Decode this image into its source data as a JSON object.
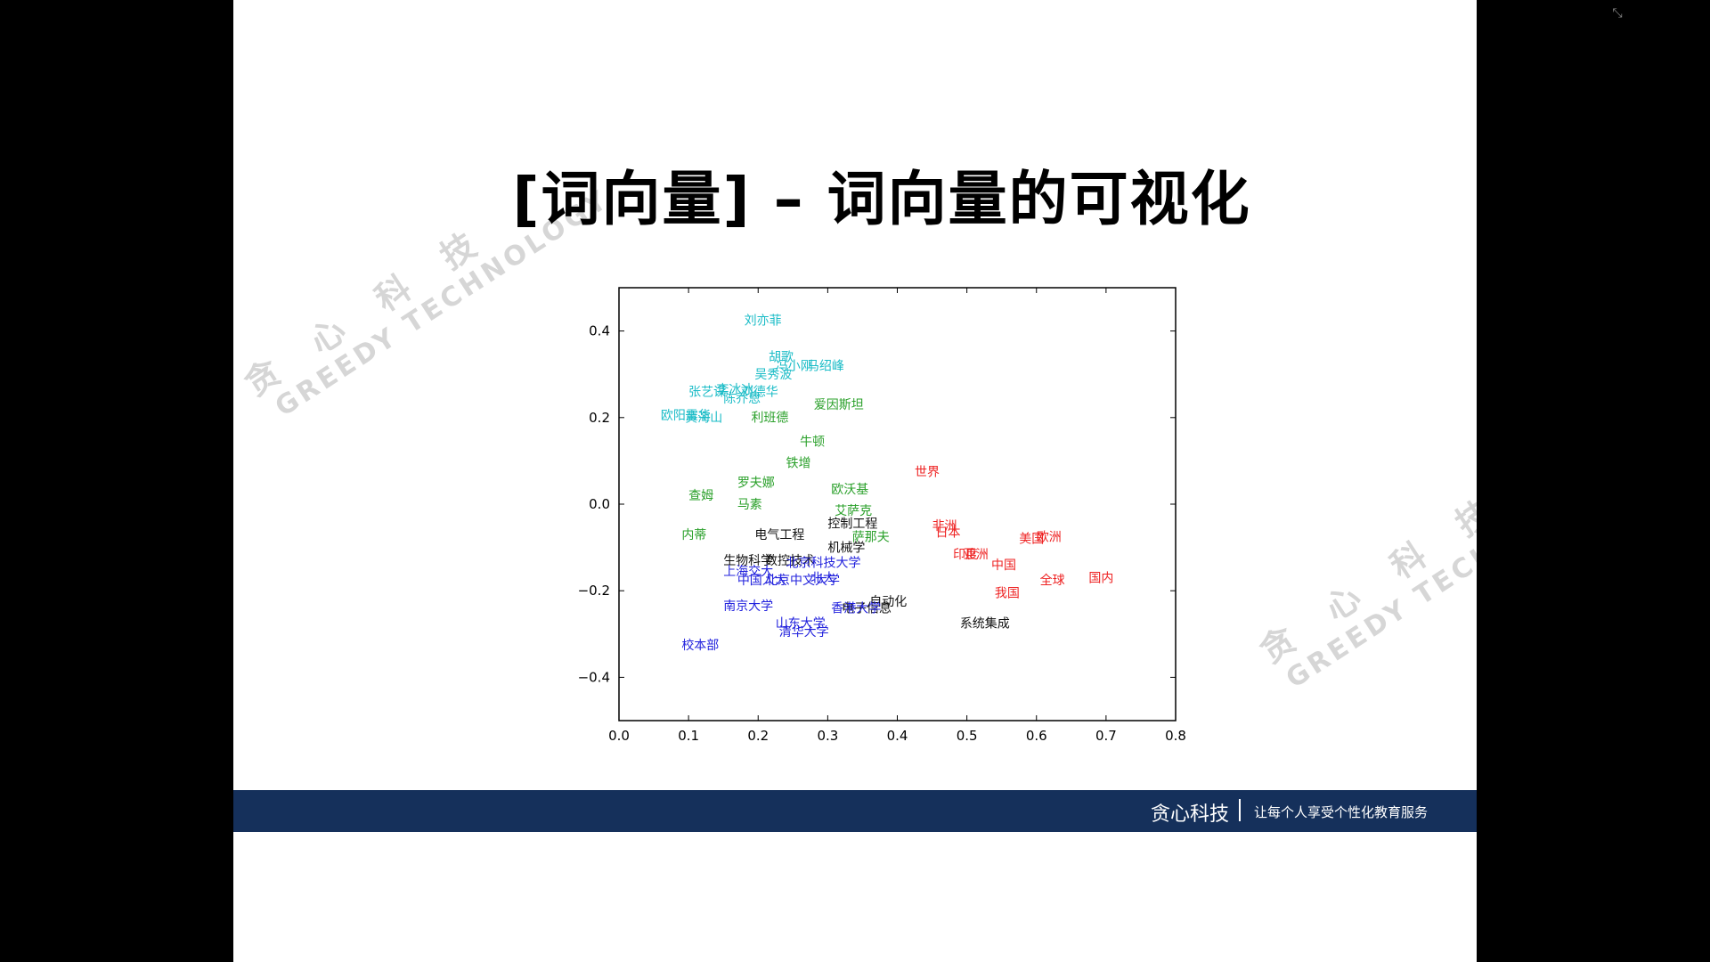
{
  "slide": {
    "title": "[词向量] – 词向量的可视化",
    "watermark": {
      "brand_cn": "贪 心 科 技",
      "brand_en": "GREEDY TECHNOLOGY"
    },
    "footer": {
      "brand": "贪心科技",
      "slogan": "让每个人享受个性化教育服务",
      "background": "#15305b"
    }
  },
  "controls": {
    "exit_fullscreen_icon": "exit-fullscreen-icon"
  },
  "chart_data": {
    "type": "scatter",
    "xlim": [
      0.0,
      0.8
    ],
    "ylim": [
      -0.5,
      0.5
    ],
    "xticks": [
      "0.0",
      "0.1",
      "0.2",
      "0.3",
      "0.4",
      "0.5",
      "0.6",
      "0.7",
      "0.8"
    ],
    "yticks": [
      "0.4",
      "0.2",
      "0.0",
      "−0.2",
      "−0.4"
    ],
    "grid": false,
    "series": [
      {
        "color": "#1bbcc7",
        "points": [
          {
            "label": "刘亦菲",
            "x": 0.18,
            "y": 0.415
          },
          {
            "label": "胡歌",
            "x": 0.215,
            "y": 0.33
          },
          {
            "label": "冯小刚",
            "x": 0.225,
            "y": 0.31
          },
          {
            "label": "马绍峰",
            "x": 0.27,
            "y": 0.31
          },
          {
            "label": "吴秀波",
            "x": 0.195,
            "y": 0.29
          },
          {
            "label": "张艺谋",
            "x": 0.1,
            "y": 0.25
          },
          {
            "label": "李冰冰",
            "x": 0.14,
            "y": 0.255
          },
          {
            "label": "刘德华",
            "x": 0.175,
            "y": 0.25
          },
          {
            "label": "陈乔恩",
            "x": 0.15,
            "y": 0.235
          },
          {
            "label": "欧阳震华",
            "x": 0.06,
            "y": 0.195
          },
          {
            "label": "黄海山",
            "x": 0.095,
            "y": 0.19
          }
        ]
      },
      {
        "color": "#2aa02a",
        "points": [
          {
            "label": "爱因斯坦",
            "x": 0.28,
            "y": 0.22
          },
          {
            "label": "利班德",
            "x": 0.19,
            "y": 0.19
          },
          {
            "label": "牛顿",
            "x": 0.26,
            "y": 0.135
          },
          {
            "label": "铁增",
            "x": 0.24,
            "y": 0.085
          },
          {
            "label": "罗夫娜",
            "x": 0.17,
            "y": 0.04
          },
          {
            "label": "欧沃基",
            "x": 0.305,
            "y": 0.025
          },
          {
            "label": "查姆",
            "x": 0.1,
            "y": 0.01
          },
          {
            "label": "马素",
            "x": 0.17,
            "y": -0.01
          },
          {
            "label": "艾萨克",
            "x": 0.31,
            "y": -0.025
          },
          {
            "label": "萨那夫",
            "x": 0.335,
            "y": -0.085
          },
          {
            "label": "内蒂",
            "x": 0.09,
            "y": -0.08
          }
        ]
      },
      {
        "color": "#111111",
        "points": [
          {
            "label": "控制工程",
            "x": 0.3,
            "y": -0.055
          },
          {
            "label": "电气工程",
            "x": 0.195,
            "y": -0.08
          },
          {
            "label": "机械学",
            "x": 0.3,
            "y": -0.11
          },
          {
            "label": "生物科学",
            "x": 0.15,
            "y": -0.14
          },
          {
            "label": "数控技术",
            "x": 0.21,
            "y": -0.14
          },
          {
            "label": "自动化",
            "x": 0.36,
            "y": -0.235
          },
          {
            "label": "电子信息",
            "x": 0.32,
            "y": -0.25
          },
          {
            "label": "系统集成",
            "x": 0.49,
            "y": -0.285
          }
        ]
      },
      {
        "color": "#2222dd",
        "points": [
          {
            "label": "北京科技大学",
            "x": 0.24,
            "y": -0.145
          },
          {
            "label": "上海交大",
            "x": 0.15,
            "y": -0.165
          },
          {
            "label": "中国人大",
            "x": 0.17,
            "y": -0.185
          },
          {
            "label": "北京中文大学",
            "x": 0.21,
            "y": -0.185
          },
          {
            "label": "北大",
            "x": 0.275,
            "y": -0.18
          },
          {
            "label": "南京大学",
            "x": 0.15,
            "y": -0.245
          },
          {
            "label": "香港大学",
            "x": 0.305,
            "y": -0.25
          },
          {
            "label": "山东大学",
            "x": 0.225,
            "y": -0.285
          },
          {
            "label": "清华大学",
            "x": 0.23,
            "y": -0.305
          },
          {
            "label": "校本部",
            "x": 0.09,
            "y": -0.335
          }
        ]
      },
      {
        "color": "#ee2222",
        "points": [
          {
            "label": "世界",
            "x": 0.425,
            "y": 0.065
          },
          {
            "label": "非洲",
            "x": 0.45,
            "y": -0.06
          },
          {
            "label": "日本",
            "x": 0.455,
            "y": -0.075
          },
          {
            "label": "美国",
            "x": 0.575,
            "y": -0.09
          },
          {
            "label": "欧洲",
            "x": 0.6,
            "y": -0.085
          },
          {
            "label": "印度",
            "x": 0.48,
            "y": -0.125
          },
          {
            "label": "亚洲",
            "x": 0.495,
            "y": -0.125
          },
          {
            "label": "中国",
            "x": 0.535,
            "y": -0.15
          },
          {
            "label": "全球",
            "x": 0.605,
            "y": -0.185
          },
          {
            "label": "国内",
            "x": 0.675,
            "y": -0.18
          },
          {
            "label": "我国",
            "x": 0.54,
            "y": -0.215
          }
        ]
      }
    ]
  }
}
